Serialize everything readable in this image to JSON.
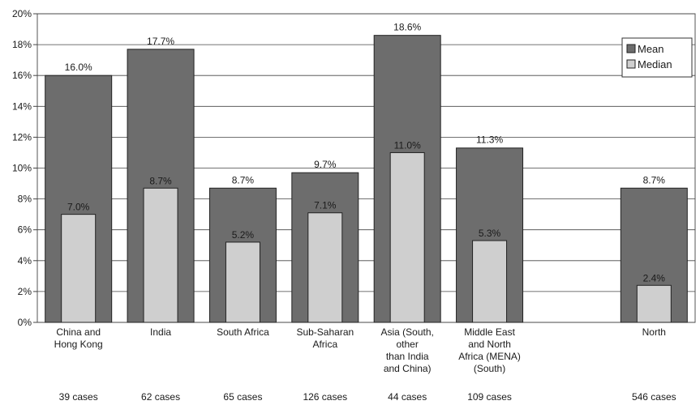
{
  "chart_data": {
    "type": "bar",
    "categories": [
      [
        "China and",
        "Hong Kong"
      ],
      [
        "India"
      ],
      [
        "South Africa"
      ],
      [
        "Sub-Saharan",
        "Africa"
      ],
      [
        "Asia (South,",
        "other",
        "than India",
        "and China)"
      ],
      [
        "Middle East",
        "and North",
        "Africa (MENA)",
        "(South)"
      ],
      [],
      [
        "North"
      ]
    ],
    "cases": [
      "39 cases",
      "62 cases",
      "65 cases",
      "126 cases",
      "44 cases",
      "109 cases",
      "",
      "546 cases"
    ],
    "series": [
      {
        "name": "Mean",
        "color": "#6d6d6d",
        "values": [
          16.0,
          17.7,
          8.7,
          9.7,
          18.6,
          11.3,
          null,
          8.7
        ],
        "labels": [
          "16.0%",
          "17.7%",
          "8.7%",
          "9.7%",
          "18.6%",
          "11.3%",
          "",
          "8.7%"
        ]
      },
      {
        "name": "Median",
        "color": "#cfcfcf",
        "values": [
          7.0,
          8.7,
          5.2,
          7.1,
          11.0,
          5.3,
          null,
          2.4
        ],
        "labels": [
          "7.0%",
          "8.7%",
          "5.2%",
          "7.1%",
          "11.0%",
          "5.3%",
          "",
          "2.4%"
        ]
      }
    ],
    "yticks": [
      "0%",
      "2%",
      "4%",
      "6%",
      "8%",
      "10%",
      "12%",
      "14%",
      "16%",
      "18%",
      "20%"
    ],
    "ylim": [
      0,
      20
    ],
    "grid": true,
    "legend": "top-right"
  }
}
